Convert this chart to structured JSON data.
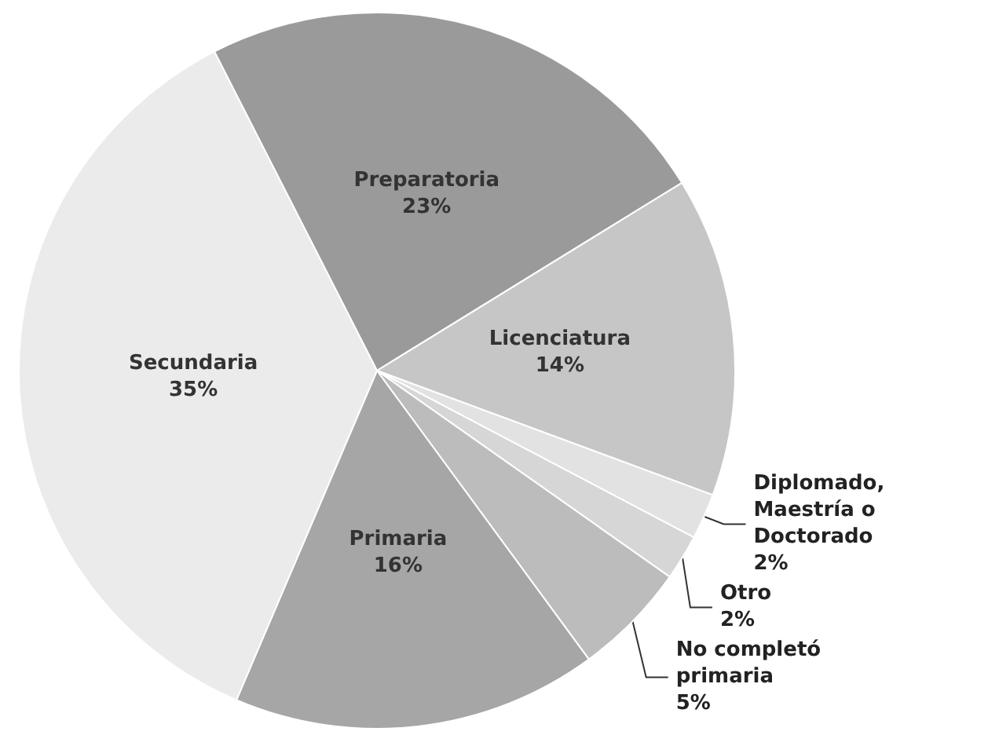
{
  "chart_data": {
    "type": "pie",
    "categories": [
      "Preparatoria",
      "Licenciatura",
      "Diplomado,\nMaestría o\nDoctorado",
      "Otro",
      "No completó\nprimaria",
      "Primaria",
      "Secundaria"
    ],
    "values": [
      23,
      14,
      2,
      2,
      5,
      16,
      35
    ],
    "value_labels": [
      "23%",
      "14%",
      "2%",
      "2%",
      "5%",
      "16%",
      "35%"
    ],
    "colors": [
      "#9a9a9a",
      "#c6c6c6",
      "#e2e2e2",
      "#d6d6d6",
      "#bcbcbc",
      "#a6a6a6",
      "#ebebeb"
    ],
    "legend": false
  }
}
